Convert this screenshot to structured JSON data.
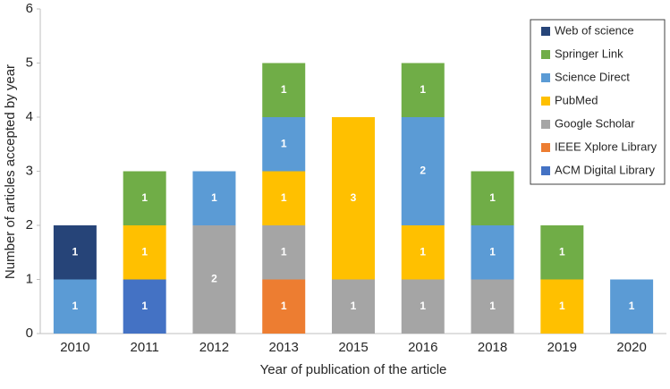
{
  "chart_data": {
    "type": "stacked-bar",
    "xlabel": "Year of publication of the article",
    "ylabel": "Number of articles accepted by year",
    "categories": [
      "2010",
      "2011",
      "2012",
      "2013",
      "2015",
      "2016",
      "2018",
      "2019",
      "2020"
    ],
    "series": [
      {
        "name": "ACM Digital Library",
        "color": "#4472c4",
        "values": [
          null,
          1,
          null,
          null,
          null,
          null,
          null,
          null,
          null
        ]
      },
      {
        "name": "IEEE Xplore Library",
        "color": "#ed7d31",
        "values": [
          null,
          null,
          null,
          1,
          null,
          null,
          null,
          null,
          null
        ]
      },
      {
        "name": "Google Scholar",
        "color": "#a5a5a5",
        "values": [
          null,
          null,
          2,
          1,
          1,
          1,
          1,
          null,
          null
        ]
      },
      {
        "name": "PubMed",
        "color": "#ffc000",
        "values": [
          null,
          1,
          null,
          1,
          3,
          1,
          null,
          1,
          null
        ]
      },
      {
        "name": "Science Direct",
        "color": "#5b9bd5",
        "values": [
          1,
          null,
          1,
          1,
          null,
          2,
          1,
          null,
          1
        ]
      },
      {
        "name": "Springer Link",
        "color": "#70ad47",
        "values": [
          null,
          1,
          null,
          1,
          null,
          1,
          1,
          1,
          null
        ]
      },
      {
        "name": "Web of science",
        "color": "#264478",
        "values": [
          1,
          null,
          null,
          null,
          null,
          null,
          null,
          null,
          null
        ]
      }
    ],
    "ylim": [
      0,
      6
    ],
    "yticks": [
      0,
      1,
      2,
      3,
      4,
      5,
      6
    ],
    "grid": false,
    "legend": "top-right"
  }
}
